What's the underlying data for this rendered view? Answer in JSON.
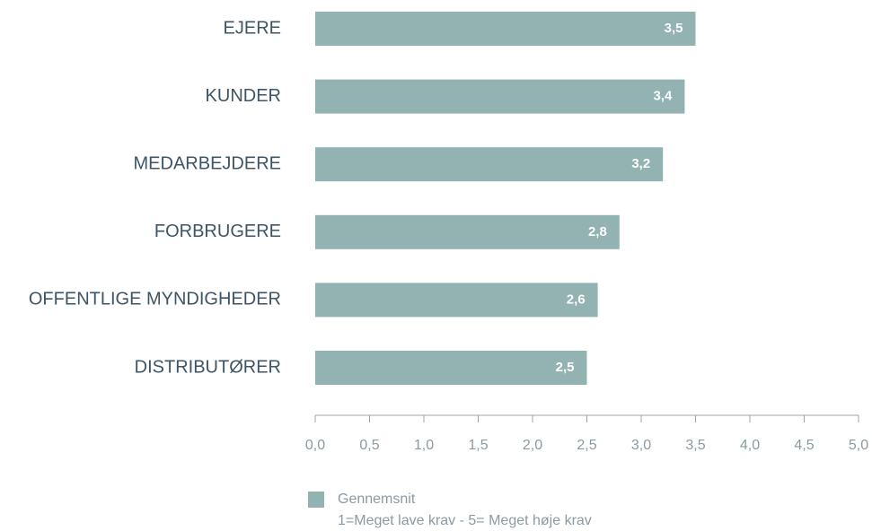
{
  "chart_data": {
    "type": "hbar",
    "categories": [
      "EJERE",
      "KUNDER",
      "MEDARBEJDERE",
      "FORBRUGERE",
      "OFFENTLIGE MYNDIGHEDER",
      "DISTRIBUTØRER"
    ],
    "series": [
      {
        "name": "Gennemsnit",
        "color": "#93b3b3",
        "values": [
          3.5,
          3.4,
          3.2,
          2.8,
          2.6,
          2.5
        ],
        "value_labels": [
          "3,5",
          "3,4",
          "3,2",
          "2,8",
          "2,6",
          "2,5"
        ]
      }
    ],
    "note": "1=Meget lave krav - 5= Meget høje krav",
    "xlim": [
      0,
      5
    ],
    "xticks": [
      {
        "value": 0,
        "label": "0,0"
      },
      {
        "value": 0.5,
        "label": "0,5"
      },
      {
        "value": 1,
        "label": "1,0"
      },
      {
        "value": 1.5,
        "label": "1,5"
      },
      {
        "value": 2,
        "label": "2,0"
      },
      {
        "value": 2.5,
        "label": "2,5"
      },
      {
        "value": 3,
        "label": "3,0"
      },
      {
        "value": 3.5,
        "label": "3,5"
      },
      {
        "value": 4,
        "label": "4,0"
      },
      {
        "value": 4.5,
        "label": "4,5"
      },
      {
        "value": 5,
        "label": "5,0"
      }
    ],
    "legend": "bottom"
  }
}
